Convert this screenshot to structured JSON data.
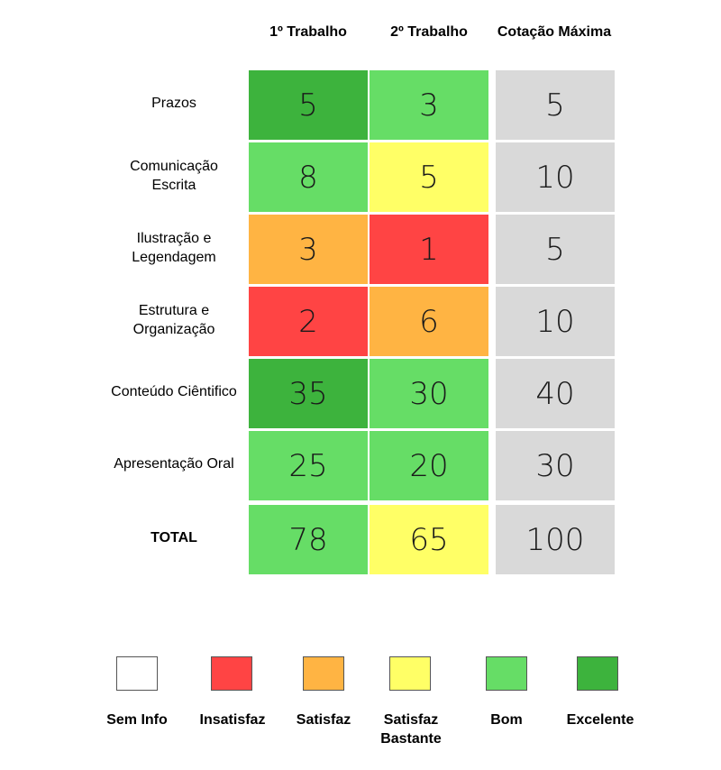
{
  "colors": {
    "sem_info": "#ffffff",
    "insatisfaz": "#ff4444",
    "satisfaz": "#ffb443",
    "satisfaz_bastante": "#ffff66",
    "bom": "#66dd66",
    "excelente": "#3db33d",
    "max": "#d9d9d9"
  },
  "chart_data": {
    "type": "table",
    "columns": [
      "1º Trabalho",
      "2º Trabalho",
      "Cotação Máxima"
    ],
    "rows": [
      {
        "label": "Prazos",
        "values": [
          5,
          3,
          5
        ],
        "ratings": [
          "excelente",
          "bom",
          "max"
        ]
      },
      {
        "label": "Comunicação Escrita",
        "values": [
          8,
          5,
          10
        ],
        "ratings": [
          "bom",
          "satisfaz_bastante",
          "max"
        ]
      },
      {
        "label": "Ilustração e Legendagem",
        "values": [
          3,
          1,
          5
        ],
        "ratings": [
          "satisfaz",
          "insatisfaz",
          "max"
        ]
      },
      {
        "label": "Estrutura e Organização",
        "values": [
          2,
          6,
          10
        ],
        "ratings": [
          "insatisfaz",
          "satisfaz",
          "max"
        ]
      },
      {
        "label": "Conteúdo Ciêntifico",
        "values": [
          35,
          30,
          40
        ],
        "ratings": [
          "excelente",
          "bom",
          "max"
        ]
      },
      {
        "label": "Apresentação Oral",
        "values": [
          25,
          20,
          30
        ],
        "ratings": [
          "bom",
          "bom",
          "max"
        ]
      },
      {
        "label": "TOTAL",
        "values": [
          78,
          65,
          100
        ],
        "ratings": [
          "bom",
          "satisfaz_bastante",
          "max"
        ],
        "is_total": true
      }
    ],
    "legend": [
      {
        "key": "sem_info",
        "label": "Sem Info"
      },
      {
        "key": "insatisfaz",
        "label": "Insatisfaz"
      },
      {
        "key": "satisfaz",
        "label": "Satisfaz"
      },
      {
        "key": "satisfaz_bastante",
        "label": "Satisfaz Bastante"
      },
      {
        "key": "bom",
        "label": "Bom"
      },
      {
        "key": "excelente",
        "label": "Excelente"
      }
    ]
  }
}
